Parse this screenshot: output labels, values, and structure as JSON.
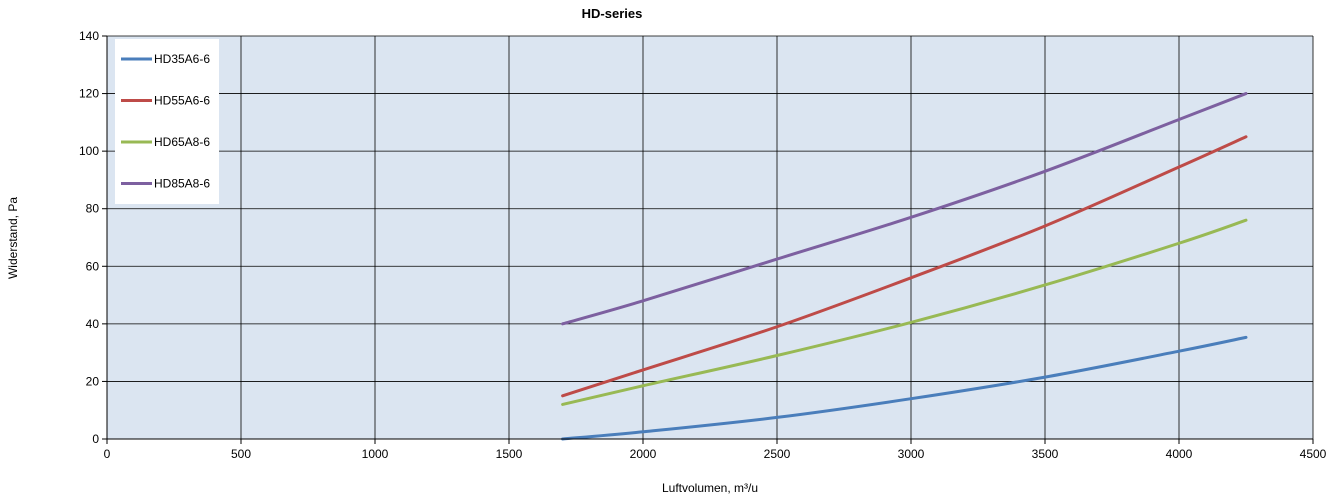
{
  "chart_data": {
    "type": "line",
    "title": "HD-series",
    "xlabel": "Luftvolumen, m³/u",
    "ylabel": "Widerstand, Pa",
    "xlim": [
      0,
      4500
    ],
    "ylim": [
      0,
      140
    ],
    "x_ticks": [
      0,
      500,
      1000,
      1500,
      2000,
      2500,
      3000,
      3500,
      4000,
      4500
    ],
    "y_ticks": [
      0,
      20,
      40,
      60,
      80,
      100,
      120,
      140
    ],
    "grid": true,
    "legend_position": "top-left",
    "plot_background": "#dbe5f1",
    "series": [
      {
        "name": "HD35A6-6",
        "color": "#4a7ebb",
        "x": [
          1700,
          2000,
          2500,
          3000,
          3500,
          4000,
          4250
        ],
        "y": [
          0,
          2.5,
          7.5,
          14,
          21.5,
          30.5,
          35.3
        ]
      },
      {
        "name": "HD55A6-6",
        "color": "#be4b48",
        "x": [
          1700,
          2000,
          2500,
          3000,
          3500,
          4000,
          4250
        ],
        "y": [
          15,
          24,
          39,
          56,
          74,
          94.5,
          105
        ]
      },
      {
        "name": "HD65A8-6",
        "color": "#98b954",
        "x": [
          1700,
          2000,
          2500,
          3000,
          3500,
          4000,
          4250
        ],
        "y": [
          12,
          18.5,
          29,
          40.5,
          53.5,
          68,
          76
        ]
      },
      {
        "name": "HD85A8-6",
        "color": "#7d60a0",
        "x": [
          1700,
          2000,
          2500,
          3000,
          3500,
          4000,
          4250
        ],
        "y": [
          40,
          48,
          62.5,
          77,
          93,
          111,
          120
        ]
      }
    ]
  }
}
